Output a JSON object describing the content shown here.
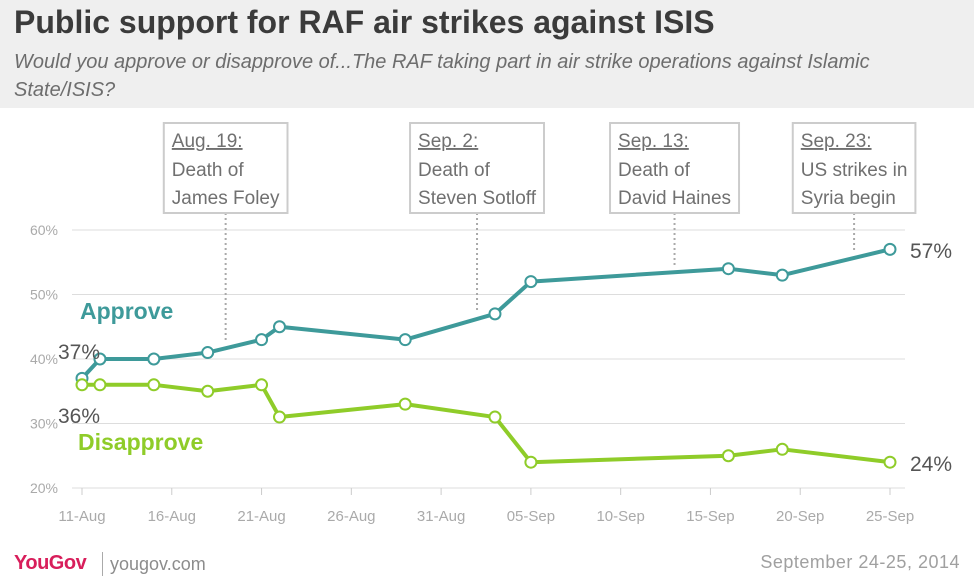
{
  "header": {
    "title": "Public support for RAF air strikes against ISIS",
    "subtitle": "Would you approve or disapprove of...The RAF taking part in air strike operations against Islamic State/ISIS?"
  },
  "footer": {
    "logo": "YouGov",
    "site": "yougov.com",
    "date": "September 24-25, 2014"
  },
  "colors": {
    "approve": "#3e9a9a",
    "disapprove": "#8fcc29",
    "grid": "#dddddd",
    "tick": "#aaaaaa",
    "header_bg": "#efefef",
    "brand": "#d81e5b"
  },
  "chart_data": {
    "type": "line",
    "title": "Public support for RAF air strikes against ISIS",
    "subtitle": "Would you approve or disapprove of...The RAF taking part in air strike operations against Islamic State/ISIS?",
    "x_tick_labels": [
      "11-Aug",
      "16-Aug",
      "21-Aug",
      "26-Aug",
      "31-Aug",
      "05-Sep",
      "10-Sep",
      "15-Sep",
      "20-Sep",
      "25-Sep"
    ],
    "x_tick_dates": [
      "2014-08-11",
      "2014-08-16",
      "2014-08-21",
      "2014-08-26",
      "2014-08-31",
      "2014-09-05",
      "2014-09-10",
      "2014-09-15",
      "2014-09-20",
      "2014-09-25"
    ],
    "y_tick_labels": [
      "20%",
      "30%",
      "40%",
      "50%",
      "60%"
    ],
    "y_ticks": [
      20,
      30,
      40,
      50,
      60
    ],
    "ylim": [
      20,
      60
    ],
    "grid": true,
    "series": [
      {
        "name": "Approve",
        "color": "#3e9a9a",
        "x": [
          "2014-08-11",
          "2014-08-12",
          "2014-08-15",
          "2014-08-18",
          "2014-08-21",
          "2014-08-22",
          "2014-08-29",
          "2014-09-03",
          "2014-09-05",
          "2014-09-16",
          "2014-09-19",
          "2014-09-25"
        ],
        "y": [
          37,
          40,
          40,
          41,
          43,
          45,
          43,
          47,
          52,
          54,
          53,
          57
        ],
        "start_label": "37%",
        "end_label": "57%"
      },
      {
        "name": "Disapprove",
        "color": "#8fcc29",
        "x": [
          "2014-08-11",
          "2014-08-12",
          "2014-08-15",
          "2014-08-18",
          "2014-08-21",
          "2014-08-22",
          "2014-08-29",
          "2014-09-03",
          "2014-09-05",
          "2014-09-16",
          "2014-09-19",
          "2014-09-25"
        ],
        "y": [
          36,
          36,
          36,
          35,
          36,
          31,
          33,
          31,
          24,
          25,
          26,
          24
        ],
        "start_label": "36%",
        "end_label": "24%"
      }
    ],
    "annotations": [
      {
        "date_label": "Aug. 19:",
        "line1": "Death of",
        "line2": "James Foley",
        "x": "2014-08-19"
      },
      {
        "date_label": "Sep. 2:",
        "line1": "Death of",
        "line2": "Steven Sotloff",
        "x": "2014-09-02"
      },
      {
        "date_label": "Sep. 13:",
        "line1": "Death of",
        "line2": "David Haines",
        "x": "2014-09-13"
      },
      {
        "date_label": "Sep. 23:",
        "line1": "US strikes in",
        "line2": "Syria begin",
        "x": "2014-09-23"
      }
    ]
  }
}
